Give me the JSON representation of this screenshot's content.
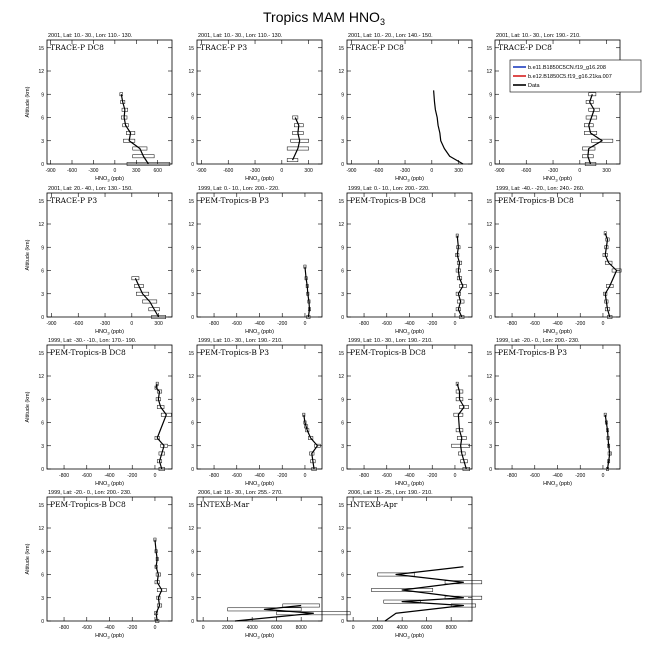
{
  "figure": {
    "title": "Tropics MAM HNO",
    "title_sub": "3",
    "ylabel": "Altitude (km)",
    "xlabel_main": "HNO",
    "xlabel_sub": "3",
    "xlabel_unit": " (ppb)"
  },
  "legend": {
    "entries": [
      {
        "label": "b.e11.B1850C5CN.f19_g16.208",
        "color": "#1f3fbf"
      },
      {
        "label": "b.e12.B1850C5.f19_g16.21ka.007",
        "color": "#d62020"
      },
      {
        "label": "Data",
        "color": "#000000"
      }
    ]
  },
  "chart_data": [
    {
      "type": "line",
      "header": "2001, Lat: 10.- 30., Lon: 110.- 130.",
      "campaign": "TRACE-P DC8",
      "xlim": [
        -950,
        800
      ],
      "xticks": [
        -900,
        -600,
        -300,
        0,
        300,
        600
      ],
      "ylim": [
        0,
        16
      ],
      "yticks": [
        0,
        3,
        6,
        9,
        12,
        15
      ],
      "series": [
        {
          "name": "Data",
          "x": [
            470,
            400,
            350,
            200,
            220,
            150,
            130,
            140,
            110,
            90
          ],
          "y": [
            0,
            1,
            2,
            3,
            4,
            5,
            6,
            7,
            8,
            9
          ],
          "err": [
            300,
            150,
            100,
            80,
            60,
            40,
            40,
            40,
            30,
            20
          ]
        }
      ]
    },
    {
      "type": "line",
      "header": "2001, Lat: 10.- 30., Lon: 110.- 130.",
      "campaign": "TRACE-P P3",
      "xlim": [
        -950,
        450
      ],
      "xticks": [
        -900,
        -600,
        -300,
        0,
        300
      ],
      "ylim": [
        0,
        16
      ],
      "yticks": [
        0,
        3,
        6,
        9,
        12,
        15
      ],
      "series": [
        {
          "name": "Data",
          "x": [
            120,
            180,
            200,
            180,
            190,
            150
          ],
          "y": [
            0.5,
            2,
            3,
            4,
            5,
            6
          ],
          "err": [
            60,
            120,
            100,
            60,
            50,
            30
          ]
        }
      ]
    },
    {
      "type": "line",
      "header": "2001, Lat: 10.- 20., Lon: 140.- 150.",
      "campaign": "TRACE-P DC8",
      "xlim": [
        -950,
        450
      ],
      "xticks": [
        -900,
        -600,
        -300,
        0,
        300
      ],
      "ylim": [
        0,
        16
      ],
      "yticks": [
        0,
        3,
        6,
        9,
        12,
        15
      ],
      "series": [
        {
          "name": "Data",
          "x": [
            350,
            200,
            140,
            100,
            90,
            70,
            60,
            40,
            30,
            20
          ],
          "y": [
            0,
            1,
            2,
            3,
            4,
            5,
            6,
            7,
            8,
            9.5
          ],
          "err": [
            0,
            0,
            0,
            0,
            0,
            0,
            0,
            0,
            0,
            0
          ]
        }
      ]
    },
    {
      "type": "line",
      "header": "2001, Lat: 10.- 30., Lon: 190.- 210.",
      "campaign": "TRACE-P DC8",
      "xlim": [
        -950,
        450
      ],
      "xticks": [
        -900,
        -600,
        -300,
        0,
        300
      ],
      "ylim": [
        0,
        16
      ],
      "yticks": [
        0,
        3,
        6,
        9,
        12,
        15
      ],
      "series": [
        {
          "name": "Data",
          "x": [
            120,
            90,
            100,
            250,
            120,
            100,
            130,
            160,
            110,
            140
          ],
          "y": [
            0,
            1,
            2,
            3,
            4,
            5,
            6,
            7,
            8,
            9
          ],
          "err": [
            60,
            60,
            70,
            120,
            70,
            50,
            60,
            60,
            40,
            40
          ]
        }
      ]
    },
    {
      "type": "line",
      "header": "2001, Lat: 20.- 40., Lon: 130.- 150.",
      "campaign": "TRACE-P P3",
      "xlim": [
        -950,
        450
      ],
      "xticks": [
        -900,
        -600,
        -300,
        0,
        300
      ],
      "ylim": [
        0,
        16
      ],
      "yticks": [
        0,
        3,
        6,
        9,
        12,
        15
      ],
      "series": [
        {
          "name": "Data",
          "x": [
            300,
            250,
            200,
            120,
            80,
            40
          ],
          "y": [
            0,
            1,
            2,
            3,
            4,
            5
          ],
          "err": [
            80,
            60,
            80,
            70,
            50,
            40
          ]
        }
      ]
    },
    {
      "type": "line",
      "header": "1999, Lat: 0.- 10., Lon: 200.- 220.",
      "campaign": "PEM-Tropics-B P3",
      "xlim": [
        -950,
        150
      ],
      "xticks": [
        -800,
        -600,
        -400,
        -200,
        0
      ],
      "ylim": [
        0,
        16
      ],
      "yticks": [
        0,
        3,
        6,
        9,
        12,
        15
      ],
      "series": [
        {
          "name": "Data",
          "x": [
            30,
            40,
            35,
            25,
            20,
            10,
            0
          ],
          "y": [
            0,
            1,
            2,
            3,
            4,
            5,
            6.5
          ],
          "err": [
            15,
            10,
            10,
            10,
            10,
            10,
            10
          ]
        }
      ]
    },
    {
      "type": "line",
      "header": "1999, Lat: 0.- 10., Lon: 200.- 220.",
      "campaign": "PEM-Tropics-B DC8",
      "xlim": [
        -950,
        150
      ],
      "xticks": [
        -800,
        -600,
        -400,
        -200,
        0
      ],
      "ylim": [
        0,
        16
      ],
      "yticks": [
        0,
        3,
        6,
        9,
        12,
        15
      ],
      "series": [
        {
          "name": "Data",
          "x": [
            60,
            30,
            50,
            30,
            70,
            40,
            30,
            40,
            20,
            30,
            20
          ],
          "y": [
            0,
            1,
            2,
            3,
            4,
            5,
            6,
            7,
            8,
            9,
            10.5
          ],
          "err": [
            20,
            20,
            30,
            20,
            30,
            20,
            20,
            20,
            15,
            15,
            10
          ]
        }
      ]
    },
    {
      "type": "line",
      "header": "1999, Lat: -40.- -20., Lon: 240.- 260.",
      "campaign": "PEM-Tropics-B DC8",
      "xlim": [
        -950,
        150
      ],
      "xticks": [
        -800,
        -600,
        -400,
        -200,
        0
      ],
      "ylim": [
        0,
        16
      ],
      "yticks": [
        0,
        3,
        6,
        9,
        12,
        15
      ],
      "series": [
        {
          "name": "Data",
          "x": [
            60,
            40,
            30,
            20,
            60,
            120,
            50,
            20,
            30,
            40,
            20
          ],
          "y": [
            0,
            1,
            2,
            3,
            4,
            6,
            7,
            8,
            9,
            10,
            10.8
          ],
          "err": [
            20,
            20,
            15,
            15,
            30,
            40,
            30,
            20,
            15,
            15,
            10
          ]
        }
      ]
    },
    {
      "type": "line",
      "header": "1999, Lat: -30.- -10., Lon: 170.- 190.",
      "campaign": "PEM-Tropics-B DC8",
      "xlim": [
        -950,
        150
      ],
      "xticks": [
        -800,
        -600,
        -400,
        -200,
        0
      ],
      "ylim": [
        0,
        16
      ],
      "yticks": [
        0,
        3,
        6,
        9,
        12,
        15
      ],
      "series": [
        {
          "name": "Data",
          "x": [
            60,
            40,
            60,
            80,
            20,
            100,
            50,
            30,
            40,
            10,
            20
          ],
          "y": [
            0,
            1,
            2,
            3,
            4,
            7,
            8,
            9,
            10,
            10.5,
            11
          ],
          "err": [
            25,
            20,
            25,
            30,
            20,
            45,
            30,
            20,
            20,
            10,
            10
          ]
        }
      ]
    },
    {
      "type": "line",
      "header": "1999, Lat: 10.- 30., Lon: 190.- 210.",
      "campaign": "PEM-Tropics-B P3",
      "xlim": [
        -950,
        150
      ],
      "xticks": [
        -800,
        -600,
        -400,
        -200,
        0
      ],
      "ylim": [
        0,
        16
      ],
      "yticks": [
        0,
        3,
        6,
        9,
        12,
        15
      ],
      "series": [
        {
          "name": "Data",
          "x": [
            80,
            70,
            60,
            110,
            50,
            20,
            10,
            0,
            -10
          ],
          "y": [
            0,
            1,
            2,
            3,
            4,
            5,
            5.5,
            6,
            7
          ],
          "err": [
            20,
            20,
            20,
            25,
            20,
            15,
            15,
            10,
            10
          ]
        }
      ]
    },
    {
      "type": "line",
      "header": "1999, Lat: 10.- 30., Lon: 190.- 210.",
      "campaign": "PEM-Tropics-B DC8",
      "xlim": [
        -950,
        150
      ],
      "xticks": [
        -800,
        -600,
        -400,
        -200,
        0
      ],
      "ylim": [
        0,
        16
      ],
      "yticks": [
        0,
        3,
        6,
        9,
        12,
        15
      ],
      "series": [
        {
          "name": "Data",
          "x": [
            100,
            80,
            60,
            50,
            60,
            40,
            30,
            80,
            40,
            40,
            20
          ],
          "y": [
            0,
            1,
            2,
            3,
            4,
            5,
            7,
            8,
            9,
            10,
            11
          ],
          "err": [
            30,
            30,
            30,
            80,
            40,
            30,
            40,
            40,
            30,
            30,
            10
          ]
        }
      ]
    },
    {
      "type": "line",
      "header": "1999, Lat: -20.- 0., Lon: 200.- 230.",
      "campaign": "PEM-Tropics-B P3",
      "xlim": [
        -950,
        150
      ],
      "xticks": [
        -800,
        -600,
        -400,
        -200,
        0
      ],
      "ylim": [
        0,
        16
      ],
      "yticks": [
        0,
        3,
        6,
        9,
        12,
        15
      ],
      "series": [
        {
          "name": "Data",
          "x": [
            40,
            50,
            60,
            50,
            45,
            40,
            30,
            20
          ],
          "y": [
            0,
            1,
            2,
            3,
            4,
            5,
            6,
            7
          ],
          "err": [
            10,
            10,
            15,
            10,
            10,
            10,
            10,
            10
          ]
        }
      ]
    },
    {
      "type": "line",
      "header": "1999, Lat: -20.- 0., Lon: 200.- 230.",
      "campaign": "PEM-Tropics-B DC8",
      "xlim": [
        -950,
        150
      ],
      "xticks": [
        -800,
        -600,
        -400,
        -200,
        0
      ],
      "ylim": [
        0,
        16
      ],
      "yticks": [
        0,
        3,
        6,
        9,
        12,
        15
      ],
      "series": [
        {
          "name": "Data",
          "x": [
            20,
            10,
            40,
            30,
            60,
            20,
            30,
            10,
            20,
            10,
            0
          ],
          "y": [
            0,
            1,
            2,
            3,
            4,
            5,
            6,
            7,
            8,
            9,
            10.5
          ],
          "err": [
            15,
            15,
            20,
            15,
            40,
            20,
            20,
            10,
            10,
            10,
            10
          ]
        }
      ]
    },
    {
      "type": "line",
      "header": "2006, Lat: 18.- 30., Lon: 255.- 270.",
      "campaign": "INTEXB-Mar",
      "xlim": [
        -500,
        9700
      ],
      "xticks": [
        0,
        2000,
        4000,
        6000,
        8000
      ],
      "ylim": [
        0,
        16
      ],
      "yticks": [
        0,
        3,
        6,
        9,
        12,
        15
      ],
      "series": [
        {
          "name": "Data",
          "x": [
            2600,
            9000,
            5000,
            8000
          ],
          "y": [
            0,
            1,
            1.5,
            2
          ],
          "err": [
            0,
            3000,
            3000,
            1500
          ]
        }
      ]
    },
    {
      "type": "line",
      "header": "2006, Lat: 15.- 25., Lon: 190.- 210.",
      "campaign": "INTEXB-Apr",
      "xlim": [
        -500,
        9700
      ],
      "xticks": [
        0,
        2000,
        4000,
        6000,
        8000
      ],
      "ylim": [
        0,
        16
      ],
      "yticks": [
        0,
        3,
        6,
        9,
        12,
        15
      ],
      "series": [
        {
          "name": "Data",
          "x": [
            2600,
            3500,
            9000,
            4000,
            9000,
            4000,
            9000,
            3500,
            9000
          ],
          "y": [
            0,
            1,
            2,
            2.5,
            3,
            4,
            5,
            6,
            7
          ],
          "err": [
            0,
            0,
            1000,
            1500,
            1500,
            2500,
            1500,
            1500,
            0
          ]
        }
      ]
    }
  ]
}
